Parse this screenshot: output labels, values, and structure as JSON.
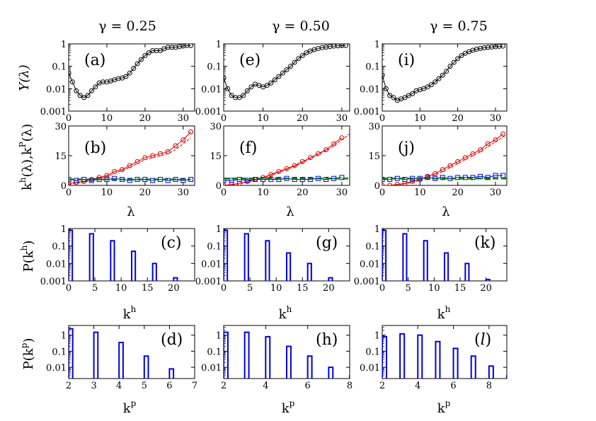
{
  "columns": [
    {
      "gamma_title": "γ = 0.25"
    },
    {
      "gamma_title": "γ = 0.50"
    },
    {
      "gamma_title": "γ = 0.75"
    }
  ],
  "row_ylabels": [
    "Y(λ)",
    "kh(λ),kP(λ)",
    "P(kh)",
    "P(kp)"
  ],
  "row_ylabel_parts": {
    "Y": {
      "main": "Y(λ)"
    },
    "k": {
      "k1": "k",
      "s1": "h",
      "mid": "(λ),k",
      "s2": "P",
      "end": "(λ)"
    },
    "Ph": {
      "pre": "P(k",
      "sup": "h",
      "post": ")"
    },
    "Pp": {
      "pre": "P(k",
      "sup": "p",
      "post": ")"
    }
  },
  "row_xlabels": {
    "lambda": "λ",
    "kh": {
      "base": "k",
      "sup": "h"
    },
    "kp": {
      "base": "k",
      "sup": "p"
    }
  },
  "colors": {
    "black": "#000000",
    "red": "#e00000",
    "blue": "#0000e0",
    "green": "#008000"
  },
  "chart_data": [
    {
      "panel": "(a)",
      "row": 0,
      "col": 0,
      "type": "line",
      "yscale": "log",
      "xlim": [
        0,
        33
      ],
      "ylim": [
        0.001,
        1
      ],
      "xticks": [
        0,
        10,
        20,
        30
      ],
      "yticks": [
        0.001,
        0.01,
        0.1,
        1
      ],
      "yticklabels": [
        "0.001",
        "0.01",
        "0.1",
        "1"
      ],
      "series": [
        {
          "marker": "circle",
          "color": "#000000",
          "x": [
            0,
            1,
            2,
            3,
            4,
            5,
            6,
            7,
            8,
            9,
            10,
            11,
            12,
            13,
            14,
            15,
            16,
            17,
            18,
            19,
            20,
            21,
            22,
            23,
            24,
            25,
            26,
            27,
            28,
            29,
            30,
            31,
            32
          ],
          "y": [
            0.05,
            0.02,
            0.008,
            0.005,
            0.004,
            0.005,
            0.008,
            0.012,
            0.018,
            0.02,
            0.02,
            0.022,
            0.025,
            0.028,
            0.03,
            0.035,
            0.05,
            0.08,
            0.13,
            0.2,
            0.3,
            0.4,
            0.5,
            0.5,
            0.5,
            0.6,
            0.7,
            0.7,
            0.7,
            0.75,
            0.8,
            0.85,
            0.85
          ]
        }
      ]
    },
    {
      "panel": "(e)",
      "row": 0,
      "col": 1,
      "type": "line",
      "yscale": "log",
      "xlim": [
        0,
        32
      ],
      "ylim": [
        0.001,
        1
      ],
      "xticks": [
        0,
        10,
        20,
        30
      ],
      "yticks": [
        0.001,
        0.01,
        0.1,
        1
      ],
      "yticklabels": [
        "0.001",
        "0.01",
        "0.1",
        "1"
      ],
      "series": [
        {
          "marker": "circle",
          "color": "#000000",
          "x": [
            0,
            1,
            2,
            3,
            4,
            5,
            6,
            7,
            8,
            9,
            10,
            11,
            12,
            13,
            14,
            15,
            16,
            17,
            18,
            19,
            20,
            21,
            22,
            23,
            24,
            25,
            26,
            27,
            28,
            29,
            30,
            31
          ],
          "y": [
            0.03,
            0.01,
            0.005,
            0.004,
            0.004,
            0.005,
            0.008,
            0.012,
            0.016,
            0.014,
            0.012,
            0.014,
            0.018,
            0.025,
            0.035,
            0.05,
            0.07,
            0.1,
            0.15,
            0.22,
            0.3,
            0.4,
            0.48,
            0.55,
            0.62,
            0.68,
            0.72,
            0.76,
            0.8,
            0.82,
            0.84,
            0.85
          ]
        }
      ]
    },
    {
      "panel": "(i)",
      "row": 0,
      "col": 2,
      "type": "line",
      "yscale": "log",
      "xlim": [
        0,
        33
      ],
      "ylim": [
        0.001,
        1
      ],
      "xticks": [
        0,
        10,
        20,
        30
      ],
      "yticks": [
        0.001,
        0.01,
        0.1,
        1
      ],
      "yticklabels": [
        "0.001",
        "0.01",
        "0.1",
        "1"
      ],
      "series": [
        {
          "marker": "circle",
          "color": "#000000",
          "x": [
            0,
            1,
            2,
            3,
            4,
            5,
            6,
            7,
            8,
            9,
            10,
            11,
            12,
            13,
            14,
            15,
            16,
            17,
            18,
            19,
            20,
            21,
            22,
            23,
            24,
            25,
            26,
            27,
            28,
            29,
            30,
            31,
            32
          ],
          "y": [
            0.04,
            0.01,
            0.005,
            0.004,
            0.003,
            0.0035,
            0.004,
            0.005,
            0.006,
            0.008,
            0.009,
            0.01,
            0.012,
            0.015,
            0.02,
            0.028,
            0.04,
            0.06,
            0.1,
            0.15,
            0.22,
            0.3,
            0.38,
            0.45,
            0.52,
            0.58,
            0.63,
            0.67,
            0.7,
            0.72,
            0.75,
            0.78,
            0.8
          ]
        }
      ]
    },
    {
      "panel": "(b)",
      "row": 1,
      "col": 0,
      "type": "line",
      "xlim": [
        0,
        33
      ],
      "ylim": [
        0,
        30
      ],
      "xticks": [
        0,
        10,
        20,
        30
      ],
      "yticks": [
        0,
        15,
        30
      ],
      "yticklabels": [
        "0",
        "15",
        "30"
      ],
      "series": [
        {
          "marker": "circle",
          "color": "#e00000",
          "x": [
            0,
            2,
            4,
            6,
            8,
            10,
            12,
            14,
            16,
            18,
            20,
            22,
            24,
            26,
            28,
            30,
            32
          ],
          "y": [
            1,
            1.5,
            2,
            3,
            4,
            5,
            7,
            8,
            10,
            12,
            14,
            15,
            16,
            17,
            20,
            23,
            27
          ]
        },
        {
          "marker": "none",
          "color": "#e00000",
          "dash": "4,2",
          "x": [
            0,
            2,
            4,
            6,
            8,
            10,
            12,
            14,
            16,
            18,
            20,
            22,
            24,
            26,
            28,
            30,
            32
          ],
          "y": [
            0.5,
            1,
            1.5,
            2.5,
            3.5,
            4.5,
            6,
            7.5,
            9,
            11,
            13,
            14,
            15,
            16,
            18,
            21,
            24
          ]
        },
        {
          "marker": "square",
          "color": "#0000e0",
          "x": [
            0,
            2,
            4,
            6,
            8,
            10,
            12,
            14,
            16,
            18,
            20,
            22,
            24,
            26,
            28,
            30,
            32
          ],
          "y": [
            3,
            2.5,
            3,
            2.5,
            3,
            3,
            3.5,
            3,
            2.5,
            3,
            3,
            2.5,
            3,
            2.5,
            3,
            2.5,
            3
          ]
        },
        {
          "marker": "none",
          "color": "#008000",
          "dash": "8,4",
          "x": [
            0,
            32
          ],
          "y": [
            3,
            3
          ]
        }
      ]
    },
    {
      "panel": "(f)",
      "row": 1,
      "col": 1,
      "type": "line",
      "xlim": [
        0,
        32
      ],
      "ylim": [
        0,
        30
      ],
      "xticks": [
        0,
        10,
        20,
        30
      ],
      "yticks": [
        0,
        15,
        30
      ],
      "yticklabels": [
        "0",
        "15",
        "30"
      ],
      "series": [
        {
          "marker": "circle",
          "color": "#e00000",
          "x": [
            0,
            2,
            4,
            6,
            8,
            10,
            12,
            14,
            16,
            18,
            20,
            22,
            24,
            26,
            28,
            30
          ],
          "y": [
            0,
            0.5,
            1,
            2,
            3,
            4,
            5.5,
            7,
            8.5,
            10,
            12,
            14,
            16,
            18,
            21,
            24
          ]
        },
        {
          "marker": "none",
          "color": "#e00000",
          "dash": "4,2",
          "x": [
            0,
            2,
            4,
            6,
            8,
            10,
            12,
            14,
            16,
            18,
            20,
            22,
            24,
            26,
            28,
            30,
            32
          ],
          "y": [
            0,
            0.3,
            0.8,
            1.6,
            2.6,
            3.6,
            5,
            6.5,
            8,
            9.5,
            11.5,
            13.5,
            15.5,
            17.5,
            20,
            23,
            26
          ]
        },
        {
          "marker": "square",
          "color": "#0000e0",
          "x": [
            0,
            2,
            4,
            6,
            8,
            10,
            12,
            14,
            16,
            18,
            20,
            22,
            24,
            26,
            28,
            30
          ],
          "y": [
            2.5,
            2.5,
            3,
            2.5,
            3,
            3,
            3,
            3,
            3.5,
            3,
            3,
            3,
            3.5,
            3,
            3.5,
            4
          ]
        },
        {
          "marker": "none",
          "color": "#008000",
          "dash": "8,4",
          "x": [
            0,
            32
          ],
          "y": [
            3.5,
            3.5
          ]
        }
      ]
    },
    {
      "panel": "(j)",
      "row": 1,
      "col": 2,
      "type": "line",
      "xlim": [
        0,
        33
      ],
      "ylim": [
        0,
        30
      ],
      "xticks": [
        0,
        10,
        20,
        30
      ],
      "yticks": [
        0,
        15,
        30
      ],
      "yticklabels": [
        "0",
        "15",
        "30"
      ],
      "series": [
        {
          "marker": "circle",
          "color": "#e00000",
          "x": [
            0,
            2,
            4,
            6,
            8,
            10,
            12,
            14,
            16,
            18,
            20,
            22,
            24,
            26,
            28,
            30,
            32
          ],
          "y": [
            0,
            0,
            0.5,
            1,
            2,
            3,
            4.5,
            6,
            8,
            10,
            12,
            14,
            16,
            18,
            21,
            23,
            26
          ]
        },
        {
          "marker": "none",
          "color": "#e00000",
          "dash": "4,2",
          "x": [
            0,
            2,
            4,
            6,
            8,
            10,
            12,
            14,
            16,
            18,
            20,
            22,
            24,
            26,
            28,
            30,
            32,
            33
          ],
          "y": [
            0,
            0,
            0.3,
            0.8,
            1.6,
            2.6,
            4,
            5.5,
            7,
            9,
            11,
            13,
            15,
            17,
            19.5,
            22,
            24.5,
            25.5
          ]
        },
        {
          "marker": "square",
          "color": "#0000e0",
          "x": [
            0,
            2,
            4,
            6,
            8,
            10,
            12,
            14,
            16,
            18,
            20,
            22,
            24,
            26,
            28,
            30,
            32
          ],
          "y": [
            3,
            3,
            3.5,
            3,
            3.5,
            3.5,
            4,
            3.5,
            4,
            3.5,
            4,
            4,
            4,
            4.5,
            4,
            5,
            5
          ]
        },
        {
          "marker": "none",
          "color": "#008000",
          "dash": "8,4",
          "x": [
            0,
            33
          ],
          "y": [
            3.5,
            3.5
          ]
        }
      ]
    },
    {
      "panel": "(c)",
      "row": 2,
      "col": 0,
      "type": "bar",
      "yscale": "log",
      "xlim": [
        0,
        24
      ],
      "ylim": [
        0.001,
        1
      ],
      "xticks": [
        0,
        5,
        10,
        15,
        20
      ],
      "yticks": [
        0.001,
        0.01,
        0.1,
        1
      ],
      "yticklabels": [
        "0.001",
        "0.01",
        "0.1",
        "1"
      ],
      "bars": {
        "x": [
          0,
          4,
          8,
          12,
          16,
          20
        ],
        "values": [
          0.8,
          0.5,
          0.2,
          0.05,
          0.01,
          0.0015
        ],
        "width": 0.7,
        "color": "#0000e0"
      }
    },
    {
      "panel": "(g)",
      "row": 2,
      "col": 1,
      "type": "bar",
      "yscale": "log",
      "xlim": [
        0,
        24
      ],
      "ylim": [
        0.001,
        1
      ],
      "xticks": [
        0,
        5,
        10,
        15,
        20
      ],
      "yticks": [
        0.001,
        0.01,
        0.1,
        1
      ],
      "yticklabels": [
        "0.001",
        "0.01",
        "0.1",
        "1"
      ],
      "bars": {
        "x": [
          0,
          4,
          8,
          12,
          16,
          20
        ],
        "values": [
          0.8,
          0.5,
          0.2,
          0.04,
          0.01,
          0.0015
        ],
        "width": 0.7,
        "color": "#0000e0"
      }
    },
    {
      "panel": "(k)",
      "row": 2,
      "col": 2,
      "type": "bar",
      "yscale": "log",
      "xlim": [
        0,
        24
      ],
      "ylim": [
        0.001,
        1
      ],
      "xticks": [
        0,
        5,
        10,
        15,
        20
      ],
      "yticks": [
        0.001,
        0.01,
        0.1,
        1
      ],
      "yticklabels": [
        "0.001",
        "0.01",
        "0.1",
        "1"
      ],
      "bars": {
        "x": [
          0,
          4,
          8,
          12,
          16,
          20
        ],
        "values": [
          0.8,
          0.5,
          0.2,
          0.04,
          0.01,
          0.0012
        ],
        "width": 0.7,
        "color": "#0000e0"
      }
    },
    {
      "panel": "(d)",
      "row": 3,
      "col": 0,
      "type": "bar",
      "yscale": "log",
      "xlim": [
        2,
        7
      ],
      "ylim": [
        0.002,
        4
      ],
      "xticks": [
        2,
        3,
        4,
        5,
        6,
        7
      ],
      "yticks": [
        0.01,
        0.1,
        1
      ],
      "yticklabels": [
        "0.01",
        "0.1",
        "1"
      ],
      "bars": {
        "x": [
          2,
          3,
          4,
          5,
          6
        ],
        "values": [
          2.5,
          1.5,
          0.35,
          0.05,
          0.008
        ],
        "width": 0.16,
        "color": "#0000e0"
      }
    },
    {
      "panel": "(h)",
      "row": 3,
      "col": 1,
      "type": "bar",
      "yscale": "log",
      "xlim": [
        2,
        8
      ],
      "ylim": [
        0.002,
        4
      ],
      "xticks": [
        2,
        4,
        6,
        8
      ],
      "yticks": [
        0.01,
        0.1,
        1
      ],
      "yticklabels": [
        "0.01",
        "0.1",
        "1"
      ],
      "bars": {
        "x": [
          2,
          3,
          4,
          5,
          6,
          7,
          8
        ],
        "values": [
          1.5,
          1.5,
          0.8,
          0.2,
          0.05,
          0.01,
          0.003
        ],
        "width": 0.2,
        "color": "#0000e0"
      }
    },
    {
      "panel": "(l)",
      "row": 3,
      "col": 2,
      "type": "bar",
      "yscale": "log",
      "xlim": [
        2,
        9
      ],
      "ylim": [
        0.002,
        4
      ],
      "xticks": [
        2,
        4,
        6,
        8
      ],
      "yticks": [
        0.01,
        0.1,
        1
      ],
      "yticklabels": [
        "0.01",
        "0.1",
        "1"
      ],
      "bars": {
        "x": [
          2,
          3,
          4,
          5,
          6,
          7,
          8,
          9
        ],
        "values": [
          0.8,
          1.2,
          1.0,
          0.4,
          0.15,
          0.05,
          0.012,
          0.003
        ],
        "width": 0.24,
        "color": "#0000e0"
      }
    }
  ]
}
